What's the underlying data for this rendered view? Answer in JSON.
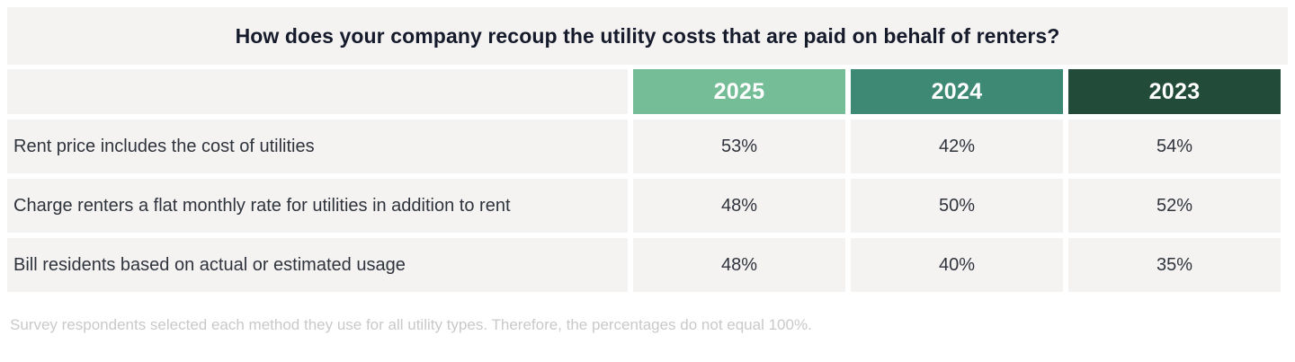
{
  "colors": {
    "year_2025_bg": "#74bd97",
    "year_2024_bg": "#3d8973",
    "year_2023_bg": "#224b39",
    "cell_bg": "#f4f3f2",
    "title_text": "#161b2c",
    "header_text": "#ffffff",
    "body_text": "#2f333c",
    "footnote_text": "#c9c9c9"
  },
  "chart_data": {
    "type": "table",
    "title": "How does your company recoup the utility costs that are paid on behalf of renters?",
    "columns": [
      "2025",
      "2024",
      "2023"
    ],
    "unit": "%",
    "rows": [
      {
        "label": "Rent price includes the cost of utilities",
        "values": [
          53,
          42,
          54
        ],
        "display": [
          "53%",
          "42%",
          "54%"
        ]
      },
      {
        "label": "Charge renters a flat monthly rate for utilities in addition to rent",
        "values": [
          48,
          50,
          52
        ],
        "display": [
          "48%",
          "50%",
          "52%"
        ]
      },
      {
        "label": "Bill residents based on actual or estimated usage",
        "values": [
          48,
          40,
          35
        ],
        "display": [
          "48%",
          "40%",
          "35%"
        ]
      }
    ],
    "footnote": "Survey respondents selected each method they use for all utility types. Therefore, the percentages do not equal 100%.",
    "layout": {
      "legend": "none",
      "grid": "off",
      "header_position": "top"
    }
  }
}
